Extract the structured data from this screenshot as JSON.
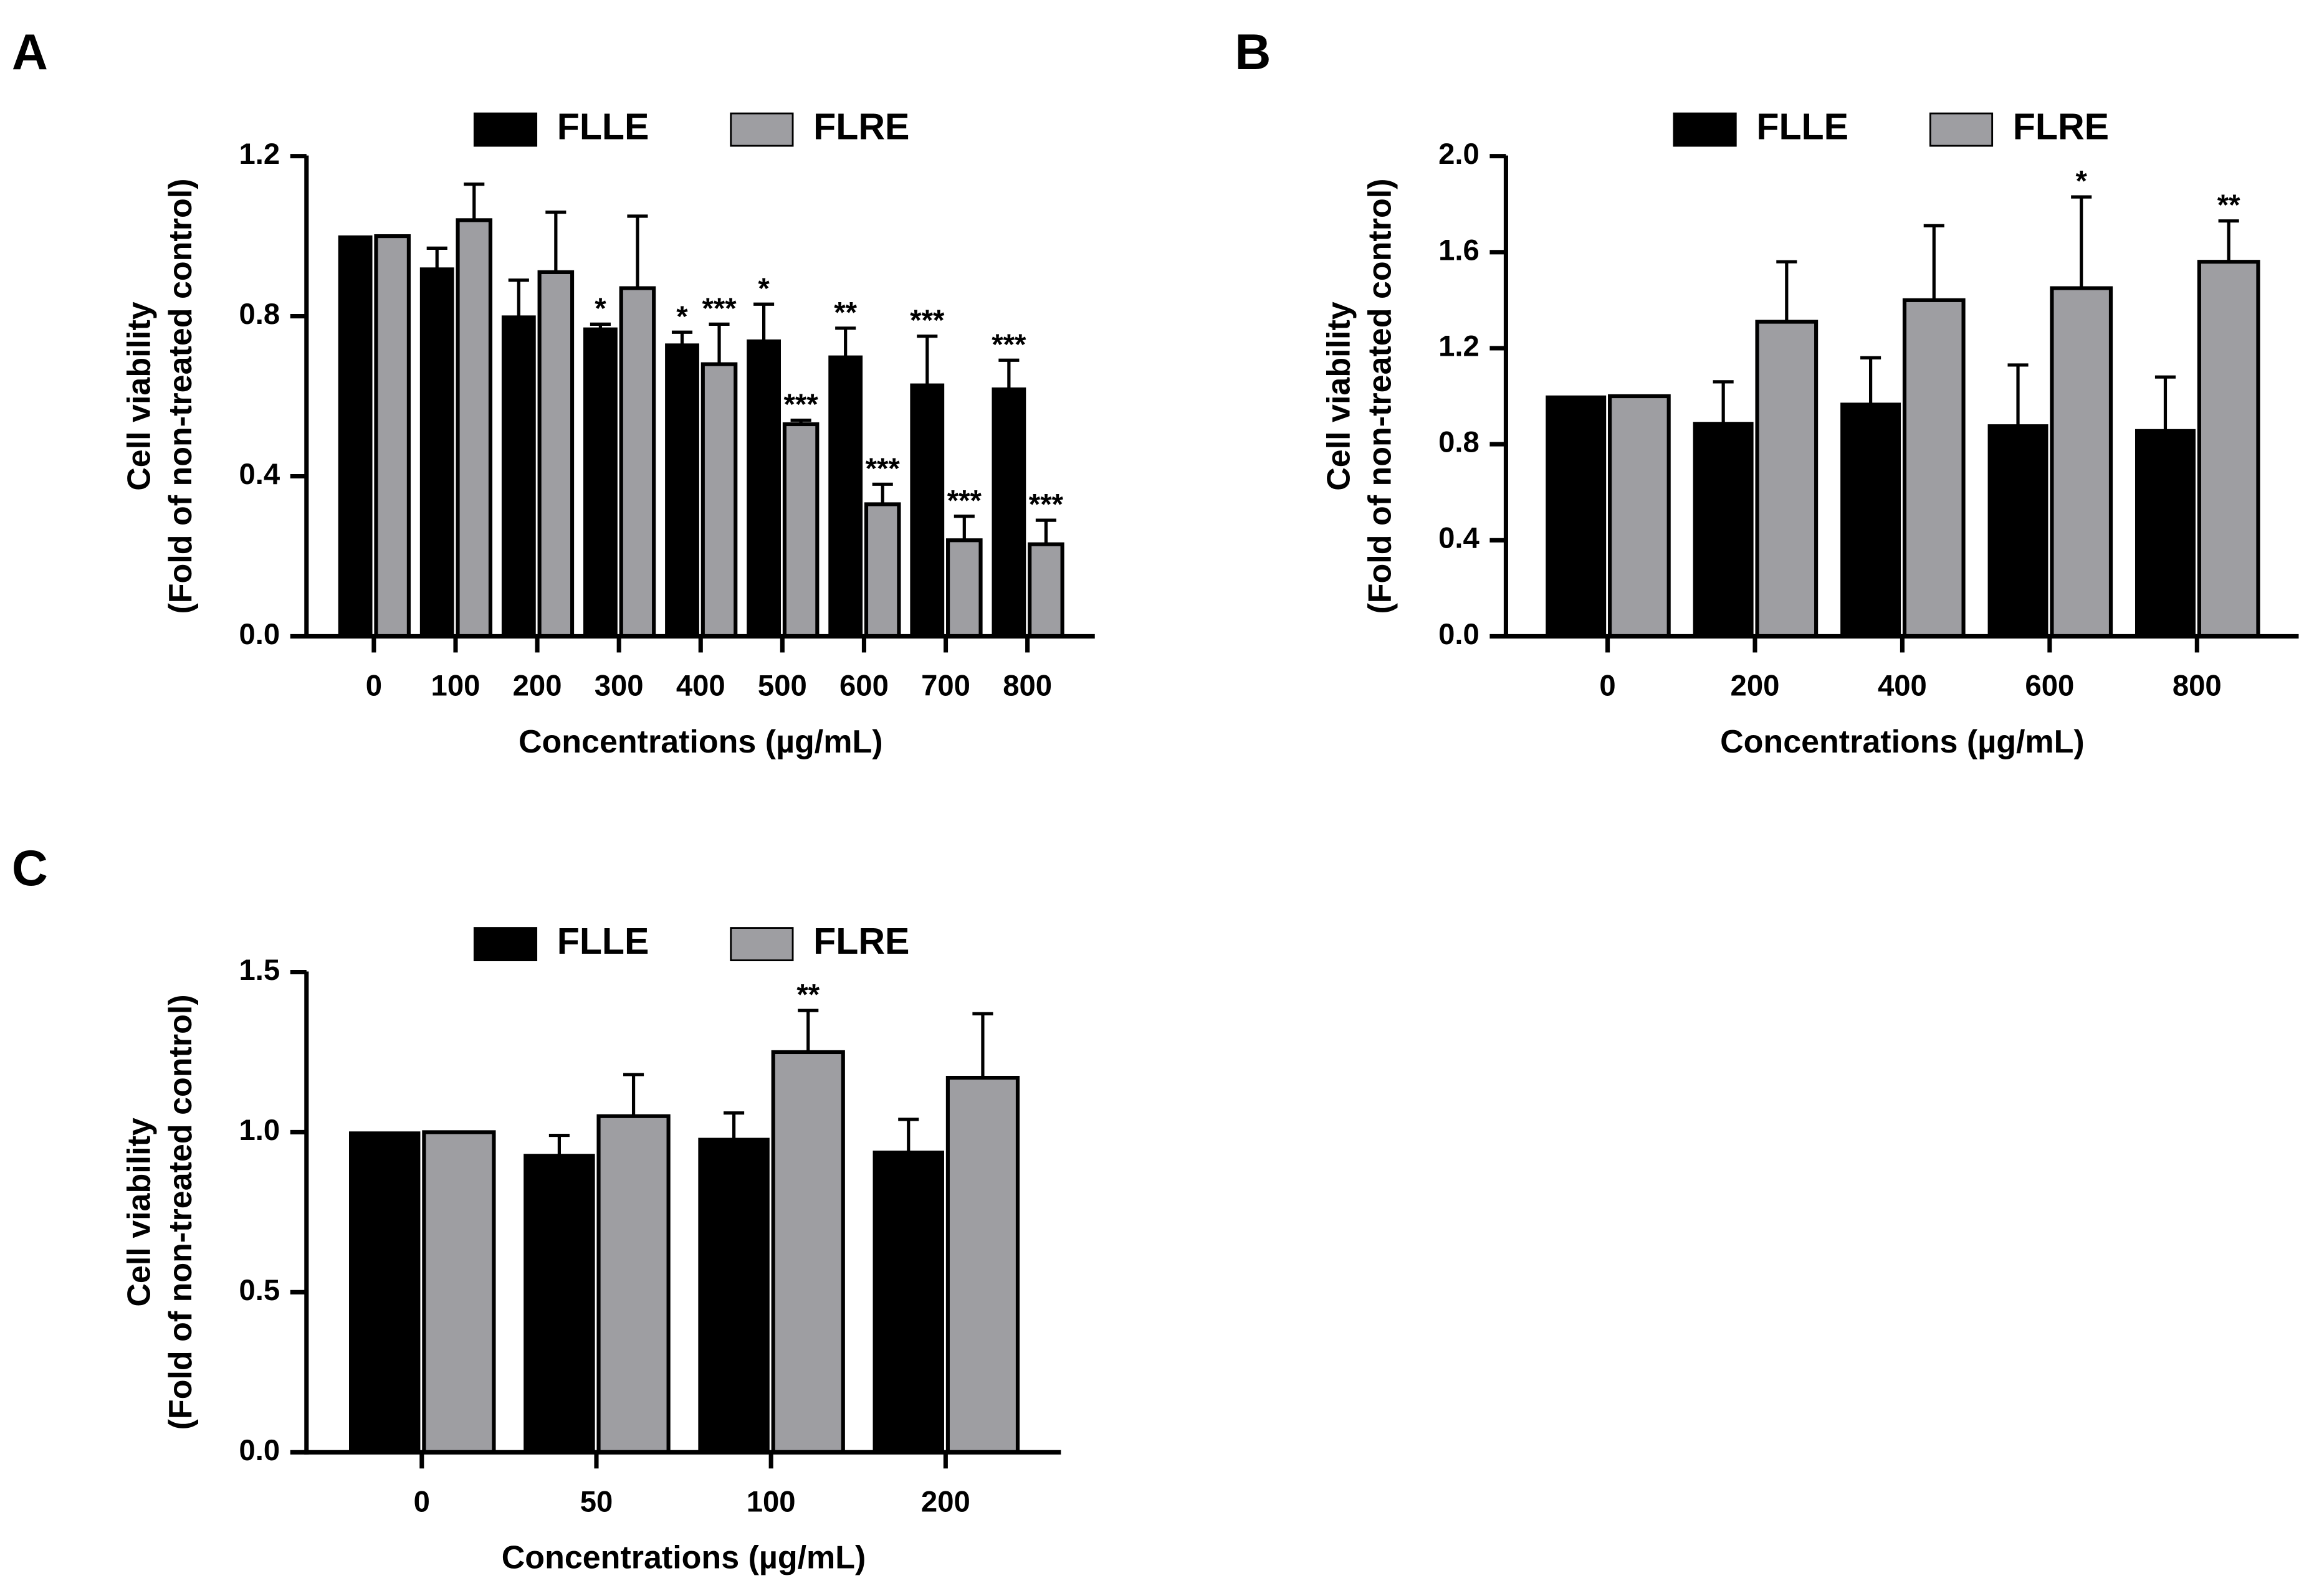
{
  "colors": {
    "flle": "#000000",
    "flre": "#9e9ea2",
    "axis": "#000000"
  },
  "chart_data": [
    {
      "panel": "A",
      "type": "bar",
      "xlabel": "Concentrations (µg/mL)",
      "ylabel": [
        "Cell viability",
        "(Fold of non-treated control)"
      ],
      "ylim": [
        0,
        1.2
      ],
      "yticks": [
        0.0,
        0.4,
        0.8,
        1.2
      ],
      "ytick_labels": [
        "0.0",
        "0.4",
        "0.8",
        "1.2"
      ],
      "categories": [
        "0",
        "100",
        "200",
        "300",
        "400",
        "500",
        "600",
        "700",
        "800"
      ],
      "series": [
        {
          "name": "FLLE",
          "values": [
            1.0,
            0.92,
            0.8,
            0.77,
            0.73,
            0.74,
            0.7,
            0.63,
            0.62
          ],
          "errors": [
            0,
            0.05,
            0.09,
            0.01,
            0.03,
            0.09,
            0.07,
            0.12,
            0.07
          ],
          "sig": [
            "",
            "",
            "",
            "*",
            "*",
            "*",
            "**",
            "***",
            "***"
          ]
        },
        {
          "name": "FLRE",
          "values": [
            1.0,
            1.04,
            0.91,
            0.87,
            0.68,
            0.53,
            0.33,
            0.24,
            0.23
          ],
          "errors": [
            0,
            0.09,
            0.15,
            0.18,
            0.1,
            0.01,
            0.05,
            0.06,
            0.06
          ],
          "sig": [
            "",
            "",
            "",
            "",
            "***",
            "***",
            "***",
            "***",
            "***"
          ]
        }
      ],
      "legend": "top"
    },
    {
      "panel": "B",
      "type": "bar",
      "xlabel": "Concentrations (µg/mL)",
      "ylabel": [
        "Cell viability",
        "(Fold of non-treated control)"
      ],
      "ylim": [
        0,
        2.0
      ],
      "yticks": [
        0.0,
        0.4,
        0.8,
        1.2,
        1.6,
        2.0
      ],
      "ytick_labels": [
        "0.0",
        "0.4",
        "0.8",
        "1.2",
        "1.6",
        "2.0"
      ],
      "categories": [
        "0",
        "200",
        "400",
        "600",
        "800"
      ],
      "series": [
        {
          "name": "FLLE",
          "values": [
            1.0,
            0.89,
            0.97,
            0.88,
            0.86
          ],
          "errors": [
            0,
            0.17,
            0.19,
            0.25,
            0.22
          ],
          "sig": [
            "",
            "",
            "",
            "",
            ""
          ]
        },
        {
          "name": "FLRE",
          "values": [
            1.0,
            1.31,
            1.4,
            1.45,
            1.56
          ],
          "errors": [
            0,
            0.25,
            0.31,
            0.38,
            0.17
          ],
          "sig": [
            "",
            "",
            "",
            "*",
            "**"
          ]
        }
      ],
      "legend": "top"
    },
    {
      "panel": "C",
      "type": "bar",
      "xlabel": "Concentrations (µg/mL)",
      "ylabel": [
        "Cell viability",
        "(Fold of non-treated control)"
      ],
      "ylim": [
        0,
        1.5
      ],
      "yticks": [
        0.0,
        0.5,
        1.0,
        1.5
      ],
      "ytick_labels": [
        "0.0",
        "0.5",
        "1.0",
        "1.5"
      ],
      "categories": [
        "0",
        "50",
        "100",
        "200"
      ],
      "series": [
        {
          "name": "FLLE",
          "values": [
            1.0,
            0.93,
            0.98,
            0.94
          ],
          "errors": [
            0,
            0.06,
            0.08,
            0.1
          ],
          "sig": [
            "",
            "",
            "",
            ""
          ]
        },
        {
          "name": "FLRE",
          "values": [
            1.0,
            1.05,
            1.25,
            1.17
          ],
          "errors": [
            0,
            0.13,
            0.13,
            0.2
          ],
          "sig": [
            "",
            "",
            "**",
            ""
          ]
        }
      ],
      "legend": "top"
    }
  ]
}
